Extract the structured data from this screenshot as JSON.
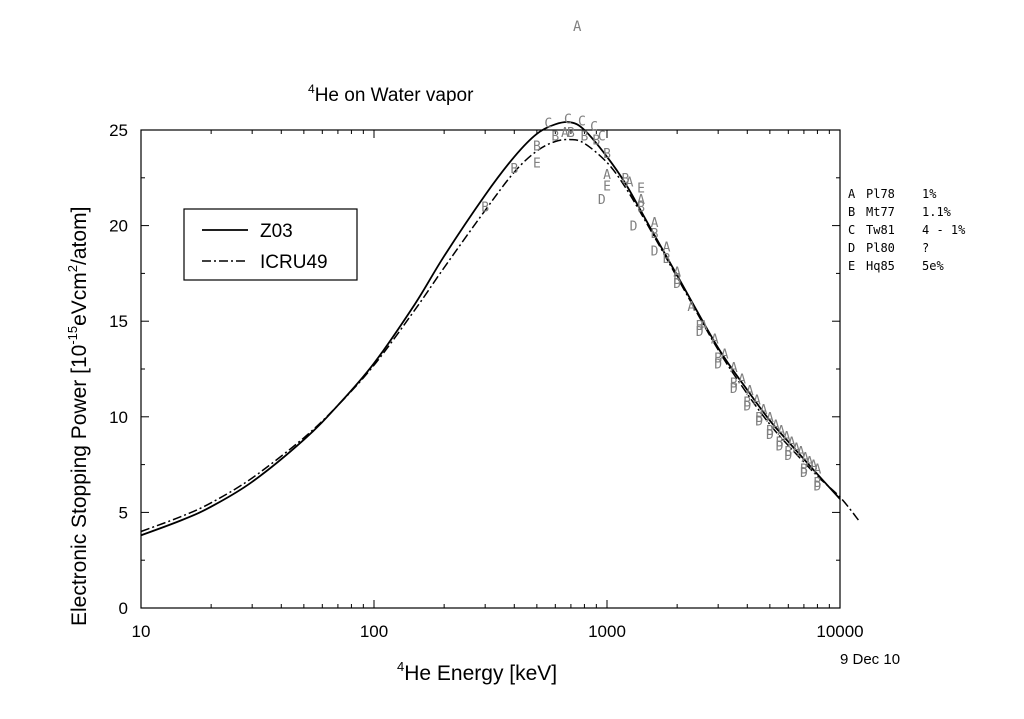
{
  "chart_data": {
    "type": "line",
    "title": "He on Water vapor",
    "title_superscript": "4",
    "xlabel": "He Energy [keV]",
    "xlabel_superscript": "4",
    "ylabel_parts": [
      "Electronic Stopping Power [10",
      "-15",
      "eVcm",
      "2",
      "/atom]"
    ],
    "x_scale": "log",
    "xlim": [
      10,
      10000
    ],
    "ylim": [
      0,
      25
    ],
    "x_ticks": [
      10,
      100,
      1000,
      10000
    ],
    "x_tick_labels": [
      "10",
      "100",
      "1000",
      "10000"
    ],
    "y_ticks": [
      0,
      5,
      10,
      15,
      20,
      25
    ],
    "y_tick_labels": [
      "0",
      "5",
      "10",
      "15",
      "20",
      "25"
    ],
    "date": "9 Dec 10",
    "legend_placement": "upper-left",
    "series": [
      {
        "name": "Z03",
        "style": "solid",
        "x": [
          10,
          15,
          20,
          30,
          50,
          70,
          100,
          150,
          200,
          300,
          400,
          500,
          600,
          700,
          800,
          1000,
          1200,
          1500,
          2000,
          3000,
          4000,
          5000,
          6000,
          8000,
          10000
        ],
        "y": [
          3.8,
          4.6,
          5.3,
          6.6,
          8.8,
          10.6,
          12.8,
          15.9,
          18.4,
          21.6,
          23.6,
          24.8,
          25.3,
          25.4,
          25.0,
          23.6,
          22.2,
          20.1,
          17.4,
          13.6,
          11.4,
          9.8,
          8.7,
          7.0,
          5.7
        ]
      },
      {
        "name": "ICRU49",
        "style": "dashdot",
        "x": [
          10,
          15,
          20,
          30,
          50,
          70,
          100,
          150,
          200,
          300,
          400,
          500,
          600,
          700,
          800,
          1000,
          1200,
          1500,
          2000,
          3000,
          4000,
          5000,
          6000,
          8000,
          10000,
          12000
        ],
        "y": [
          4.0,
          4.8,
          5.5,
          6.8,
          8.9,
          10.6,
          12.7,
          15.6,
          17.8,
          20.8,
          22.8,
          23.9,
          24.4,
          24.5,
          24.3,
          23.3,
          22.0,
          20.0,
          17.3,
          13.5,
          11.2,
          9.6,
          8.5,
          6.9,
          5.8,
          4.6
        ]
      }
    ],
    "measurements": [
      {
        "letter": "A",
        "label": "Pl78",
        "uncertainty": "1%",
        "x": [
          660,
          1000,
          1250,
          1400,
          1600,
          1800,
          2000,
          2300,
          2600,
          2900,
          3200,
          3500,
          3800,
          4100,
          4400,
          4700,
          5000,
          5300,
          5600,
          5900,
          6200,
          6500,
          6800,
          7100,
          7400,
          7700,
          8000
        ],
        "y": [
          24.9,
          22.7,
          22.3,
          21.4,
          20.2,
          18.9,
          17.6,
          15.8,
          14.8,
          14.1,
          13.3,
          12.6,
          12.0,
          11.4,
          10.9,
          10.4,
          10.0,
          9.6,
          9.3,
          9.0,
          8.7,
          8.4,
          8.2,
          7.9,
          7.7,
          7.5,
          7.3
        ]
      },
      {
        "letter": "B",
        "label": "Mt77",
        "uncertainty": "1.1%",
        "x": [
          300,
          400,
          500,
          600,
          700,
          800,
          900,
          1000,
          1200,
          1400,
          1600,
          1800,
          2000,
          2500,
          3000,
          3500,
          4000,
          4500,
          5000,
          5500,
          6000,
          7000,
          8000
        ],
        "y": [
          21.0,
          23.0,
          24.2,
          24.7,
          24.9,
          24.7,
          24.5,
          23.8,
          22.5,
          21.0,
          19.6,
          18.3,
          17.2,
          14.8,
          13.1,
          11.8,
          10.8,
          10.0,
          9.3,
          8.7,
          8.2,
          7.3,
          6.6
        ]
      },
      {
        "letter": "C",
        "label": "Tw81",
        "uncertainty": "4 - 1%",
        "x": [
          560,
          680,
          780,
          880,
          950
        ],
        "y": [
          25.4,
          25.6,
          25.5,
          25.2,
          24.7
        ]
      },
      {
        "letter": "D",
        "label": "Pl80",
        "uncertainty": "?",
        "x": [
          950,
          1300,
          1600,
          2000,
          2500,
          3000,
          3500,
          4000,
          4500,
          5000,
          5500,
          6000,
          7000,
          8000
        ],
        "y": [
          21.4,
          20.0,
          18.7,
          17.0,
          14.5,
          12.8,
          11.5,
          10.6,
          9.8,
          9.1,
          8.5,
          8.0,
          7.1,
          6.4
        ]
      },
      {
        "letter": "E",
        "label": "Hq85",
        "uncertainty": "5e%",
        "x": [
          500,
          1000,
          1400
        ],
        "y": [
          23.3,
          22.1,
          22.0
        ]
      }
    ],
    "stray_marker": {
      "letter": "A"
    }
  },
  "colors": {
    "line": "#000000",
    "marker": "#808080",
    "background": "#ffffff"
  }
}
